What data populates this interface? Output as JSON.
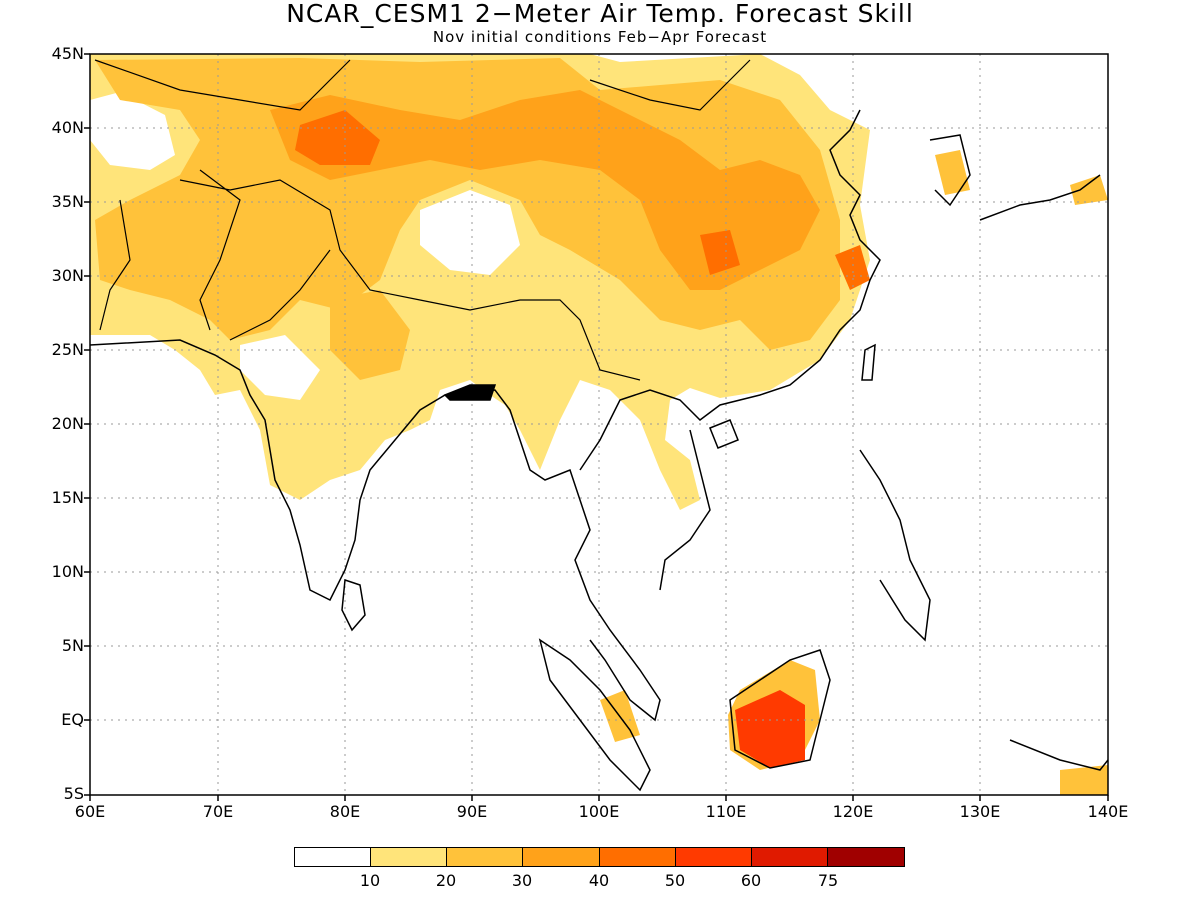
{
  "title": "NCAR_CESM1 2−Meter Air Temp. Forecast Skill",
  "subtitle": "Nov initial conditions  Feb−Apr Forecast",
  "latitude_labels": [
    "45N",
    "40N",
    "35N",
    "30N",
    "25N",
    "20N",
    "15N",
    "10N",
    "5N",
    "EQ",
    "5S"
  ],
  "longitude_labels": [
    "60E",
    "70E",
    "80E",
    "90E",
    "100E",
    "110E",
    "120E",
    "130E",
    "140E"
  ],
  "colorbar": {
    "colors": [
      "#ffffff",
      "#ffe47a",
      "#ffc23a",
      "#ffa21a",
      "#ff6e00",
      "#ff3a00",
      "#e01a00",
      "#a00000"
    ],
    "labels": [
      "10",
      "20",
      "30",
      "40",
      "50",
      "60",
      "75"
    ]
  },
  "colors": {
    "land_outline": "#000000",
    "grid": "#999999",
    "skill_10_20": "#ffe47a",
    "skill_20_30": "#ffc23a",
    "skill_30_40": "#ffa21a",
    "skill_40_50": "#ff6e00",
    "skill_50_60": "#ff3a00"
  }
}
